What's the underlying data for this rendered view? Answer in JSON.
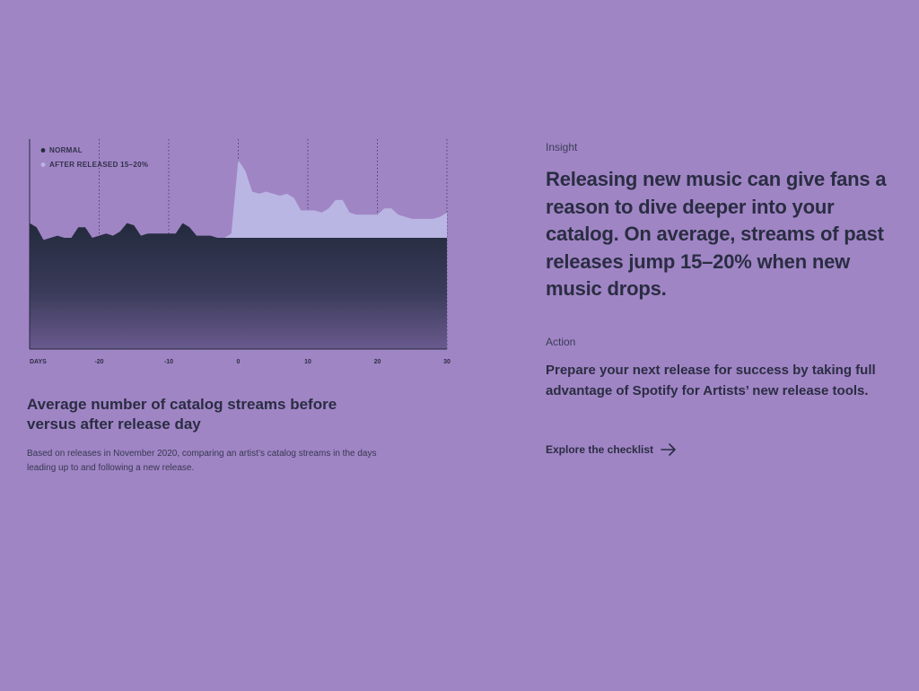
{
  "chart_data": {
    "type": "area",
    "legend": [
      {
        "label": "NORMAL",
        "color": "#232a3d"
      },
      {
        "label": "AFTER RELEASED 15–20%",
        "color": "#bab6e3"
      }
    ],
    "legend_position": "top-left",
    "x_axis_label": "DAYS",
    "x_ticks": [
      -20,
      -10,
      0,
      10,
      20,
      30
    ],
    "xlim": [
      -30,
      30
    ],
    "ylim": [
      0,
      100
    ],
    "grid": "vertical-dotted",
    "series": [
      {
        "name": "NORMAL",
        "x": [
          -30,
          -29,
          -28,
          -27,
          -26,
          -25,
          -24,
          -23,
          -22,
          -21,
          -20,
          -19,
          -18,
          -17,
          -16,
          -15,
          -14,
          -13,
          -12,
          -11,
          -10,
          -9,
          -8,
          -7,
          -6,
          -5,
          -4,
          -3,
          -2,
          -1,
          0,
          1,
          2,
          3,
          4,
          5,
          6,
          7,
          8,
          9,
          10,
          11,
          12,
          13,
          14,
          15,
          16,
          17,
          18,
          19,
          20,
          21,
          22,
          23,
          24,
          25,
          26,
          27,
          28,
          29,
          30
        ],
        "y": [
          60,
          58,
          52,
          53,
          54,
          53,
          53,
          58,
          58,
          53,
          54,
          55,
          54,
          56,
          60,
          59,
          54,
          55,
          55,
          55,
          55,
          55,
          60,
          58,
          54,
          54,
          54,
          53,
          53,
          53,
          53,
          53,
          53,
          53,
          53,
          53,
          53,
          53,
          53,
          53,
          53,
          53,
          53,
          53,
          53,
          53,
          53,
          53,
          53,
          53,
          53,
          53,
          53,
          53,
          53,
          53,
          53,
          53,
          53,
          53,
          53
        ]
      },
      {
        "name": "AFTER RELEASED 15–20%",
        "x": [
          -2,
          -1,
          0,
          1,
          2,
          3,
          4,
          5,
          6,
          7,
          8,
          9,
          10,
          11,
          12,
          13,
          14,
          15,
          16,
          17,
          18,
          19,
          20,
          21,
          22,
          23,
          24,
          25,
          26,
          27,
          28,
          29,
          30
        ],
        "y": [
          53,
          55,
          90,
          85,
          75,
          74,
          75,
          74,
          73,
          74,
          72,
          66,
          66,
          66,
          65,
          67,
          71,
          71,
          65,
          64,
          64,
          64,
          64,
          67,
          67,
          64,
          63,
          62,
          62,
          62,
          62,
          63,
          65
        ]
      }
    ]
  },
  "caption": {
    "title": "Average number of catalog streams before versus after release day",
    "subtitle": "Based on releases in November 2020, comparing an artist’s catalog streams in the days leading up to and following a new release."
  },
  "insight": {
    "label": "Insight",
    "text": "Releasing new music can give fans a reason to dive deeper into your catalog. On average, streams of past releases jump 15–20% when new music drops."
  },
  "action": {
    "label": "Action",
    "text": "Prepare your next release for success by taking full advantage of Spotify for Artists’ new release tools.",
    "link_label": "Explore the checklist",
    "link_icon": "arrow-right-icon"
  }
}
